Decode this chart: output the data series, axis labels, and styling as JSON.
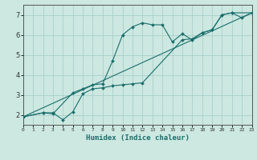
{
  "xlabel": "Humidex (Indice chaleur)",
  "xlim": [
    0,
    23
  ],
  "ylim": [
    1.5,
    7.5
  ],
  "yticks": [
    2,
    3,
    4,
    5,
    6,
    7
  ],
  "xticks": [
    0,
    1,
    2,
    3,
    4,
    5,
    6,
    7,
    8,
    9,
    10,
    11,
    12,
    13,
    14,
    15,
    16,
    17,
    18,
    19,
    20,
    21,
    22,
    23
  ],
  "background_color": "#cce8e0",
  "grid_color": "#aacfca",
  "line_color": "#1a6e6e",
  "lines": [
    {
      "x": [
        0,
        2,
        3,
        5,
        6,
        7,
        8,
        9,
        10,
        11,
        12,
        13,
        14,
        15,
        16,
        17,
        18,
        19,
        20,
        21,
        22,
        23
      ],
      "y": [
        1.9,
        2.1,
        2.05,
        3.1,
        3.3,
        3.5,
        3.55,
        4.7,
        6.0,
        6.4,
        6.6,
        6.5,
        6.5,
        5.65,
        6.05,
        5.75,
        6.1,
        6.25,
        7.0,
        7.1,
        6.85,
        7.1
      ]
    },
    {
      "x": [
        0,
        2,
        3,
        4,
        5,
        6,
        7,
        8,
        9,
        10,
        11,
        12,
        16,
        17,
        18,
        19,
        20,
        21,
        23
      ],
      "y": [
        1.9,
        2.1,
        2.1,
        1.75,
        2.15,
        3.05,
        3.3,
        3.35,
        3.45,
        3.5,
        3.55,
        3.6,
        5.75,
        5.8,
        6.1,
        6.25,
        7.0,
        7.1,
        7.1
      ]
    },
    {
      "x": [
        0,
        23
      ],
      "y": [
        1.9,
        7.1
      ]
    }
  ]
}
